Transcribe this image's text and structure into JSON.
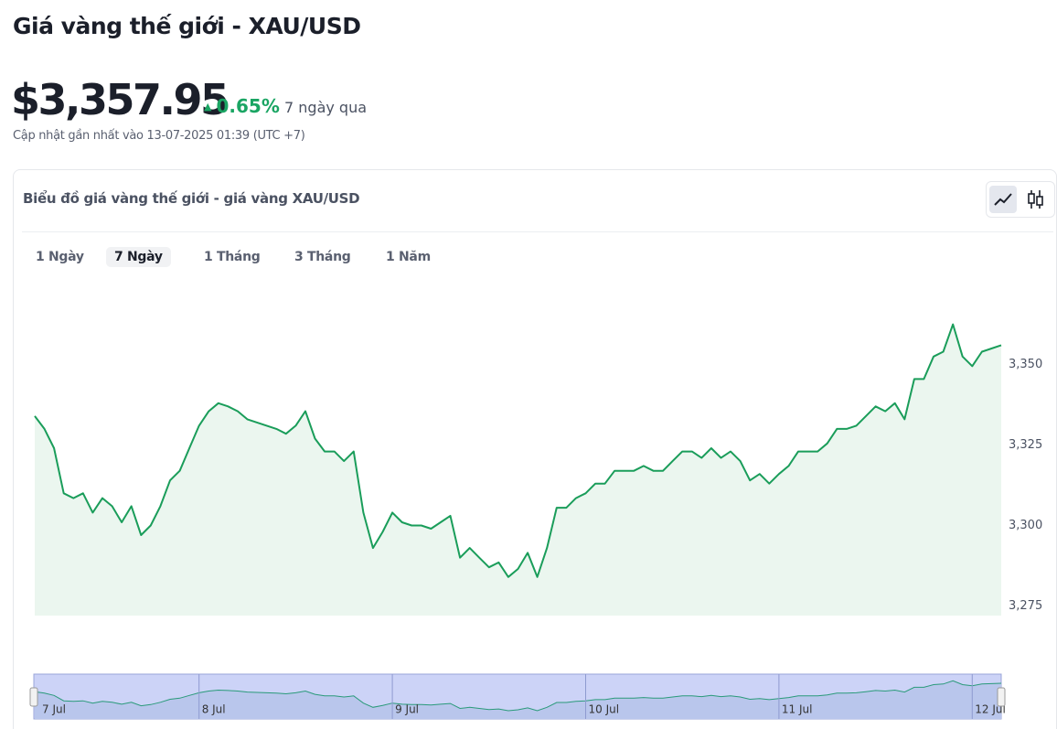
{
  "header": {
    "title": "Giá vàng thế giới - XAU/USD",
    "price": "$3,357.95",
    "change": "0.65%",
    "period": "7 ngày qua",
    "updated": "Cập nhật gần nhất vào 13-07-2025 01:39 (UTC +7)"
  },
  "tabs": [
    "1 Ngày",
    "7 Ngày",
    "1 Tháng",
    "3 Tháng",
    "1 Năm"
  ],
  "chart_data": {
    "type": "line",
    "title": "Biểu đồ giá vàng thế giới - giá vàng XAU/USD",
    "color": "#1a9d5a",
    "fill": "#ebf6ef",
    "categories": [
      "7 Jul",
      null,
      null,
      null,
      null,
      null,
      null,
      null,
      null,
      null,
      null,
      null,
      null,
      null,
      null,
      null,
      null,
      "8 Jul",
      null,
      null,
      null,
      null,
      null,
      null,
      null,
      null,
      null,
      null,
      null,
      null,
      null,
      null,
      null,
      null,
      null,
      null,
      null,
      "9 Jul",
      null,
      null,
      null,
      null,
      null,
      null,
      null,
      null,
      null,
      null,
      null,
      null,
      null,
      null,
      null,
      null,
      null,
      null,
      null,
      "10 Jul",
      null,
      null,
      null,
      null,
      null,
      null,
      null,
      null,
      null,
      null,
      null,
      null,
      null,
      null,
      null,
      null,
      null,
      null,
      null,
      "11 Jul",
      null,
      null,
      null,
      null,
      null,
      null,
      null,
      null,
      null,
      null,
      null,
      null,
      null,
      null,
      null,
      null,
      null,
      null,
      null,
      "12 Jul",
      null,
      null,
      null
    ],
    "values": [
      3334,
      3330,
      3324,
      3310,
      3308.5,
      3310,
      3304,
      3308.5,
      3306,
      3301,
      3306,
      3297,
      3300,
      3306,
      3314,
      3317,
      3324,
      3331,
      3335.5,
      3338,
      3337,
      3335.5,
      3333,
      3332,
      3331,
      3330,
      3328.5,
      3331,
      3335.5,
      3327,
      3323,
      3323,
      3320,
      3323,
      3304,
      3293,
      3298,
      3304,
      3301,
      3300,
      3300,
      3299,
      3301,
      3303,
      3290,
      3293,
      3290,
      3287,
      3288.5,
      3284,
      3286.5,
      3291.5,
      3284,
      3293,
      3305.5,
      3305.5,
      3308.5,
      3310,
      3313,
      3313,
      3317,
      3317,
      3317,
      3318.5,
      3317,
      3317,
      3320,
      3323,
      3323,
      3321,
      3324,
      3321,
      3323,
      3320,
      3314,
      3316,
      3313,
      3316,
      3318.5,
      3323,
      3323,
      3323,
      3325.5,
      3330,
      3330,
      3331,
      3334,
      3337,
      3335.5,
      3338,
      3333,
      3345.5,
      3345.5,
      3352.5,
      3354,
      3362.5,
      3352.5,
      3349.5,
      3354,
      3355,
      3356
    ],
    "ylim": [
      3272,
      3380
    ],
    "yticks": [
      {
        "value": 3275,
        "label": "3,275"
      },
      {
        "value": 3300,
        "label": "3,300"
      },
      {
        "value": 3325,
        "label": "3,325"
      },
      {
        "value": 3350,
        "label": "3,350"
      }
    ]
  }
}
